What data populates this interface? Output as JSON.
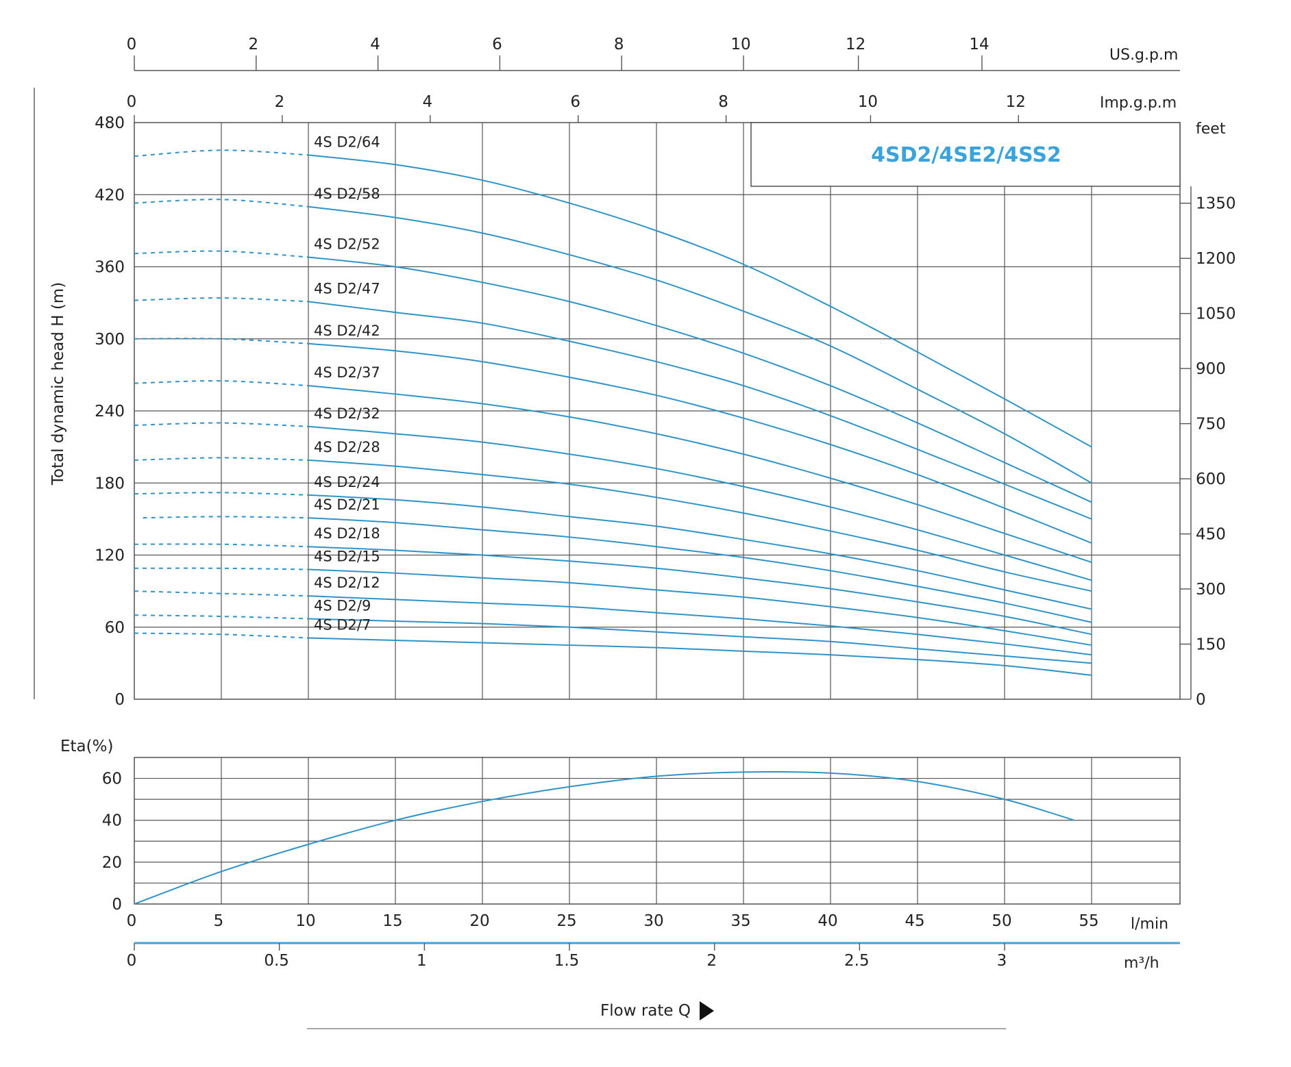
{
  "colors": {
    "curve": "#2e93c8",
    "grid": "#555555",
    "text": "#222222",
    "accent": "#3aa3dc"
  },
  "model_title": "4SD2/4SE2/4SS2",
  "chart_data": [
    {
      "type": "line",
      "panel": "head",
      "ylabel": "Total dynamic head H (m)",
      "xlabel": "Flow rate Q",
      "x_unit": "l/min",
      "xlim": [
        0,
        60
      ],
      "ylim": [
        0,
        480
      ],
      "x_ticks": [
        0,
        5,
        10,
        15,
        20,
        25,
        30,
        35,
        40,
        45,
        50,
        55
      ],
      "y_ticks": [
        0,
        60,
        120,
        180,
        240,
        300,
        360,
        420,
        480
      ],
      "grid": true,
      "dashed_segment_x": [
        0,
        10
      ],
      "series": [
        {
          "name": "4S D2/64",
          "x": [
            0,
            5,
            10,
            15,
            20,
            25,
            30,
            35,
            40,
            45,
            50,
            55
          ],
          "y": [
            452,
            457,
            453,
            445,
            432,
            413,
            390,
            362,
            327,
            289,
            250,
            210
          ]
        },
        {
          "name": "4S D2/58",
          "x": [
            0,
            5,
            10,
            15,
            20,
            25,
            30,
            35,
            40,
            45,
            50,
            55
          ],
          "y": [
            413,
            416,
            410,
            401,
            388,
            370,
            349,
            323,
            294,
            258,
            221,
            180
          ]
        },
        {
          "name": "4S D2/52",
          "x": [
            0,
            5,
            10,
            15,
            20,
            25,
            30,
            35,
            40,
            45,
            50,
            55
          ],
          "y": [
            371,
            373,
            368,
            360,
            347,
            331,
            311,
            288,
            261,
            230,
            197,
            164
          ]
        },
        {
          "name": "4S D2/47",
          "x": [
            0,
            5,
            10,
            15,
            20,
            25,
            30,
            35,
            40,
            45,
            50,
            55
          ],
          "y": [
            332,
            334,
            331,
            322,
            313,
            298,
            281,
            261,
            236,
            208,
            179,
            150
          ]
        },
        {
          "name": "4S D2/42",
          "x": [
            0,
            5,
            10,
            15,
            20,
            25,
            30,
            35,
            40,
            45,
            50,
            55
          ],
          "y": [
            300,
            300,
            296,
            290,
            281,
            268,
            253,
            234,
            212,
            187,
            159,
            130
          ]
        },
        {
          "name": "4S D2/37",
          "x": [
            0,
            5,
            10,
            15,
            20,
            25,
            30,
            35,
            40,
            45,
            50,
            55
          ],
          "y": [
            263,
            265,
            261,
            254,
            246,
            235,
            221,
            204,
            184,
            162,
            138,
            114
          ]
        },
        {
          "name": "4S D2/32",
          "x": [
            0,
            5,
            10,
            15,
            20,
            25,
            30,
            35,
            40,
            45,
            50,
            55
          ],
          "y": [
            228,
            230,
            227,
            221,
            214,
            204,
            192,
            177,
            160,
            141,
            120,
            99
          ]
        },
        {
          "name": "4S D2/28",
          "x": [
            0,
            5,
            10,
            15,
            20,
            25,
            30,
            35,
            40,
            45,
            50,
            55
          ],
          "y": [
            199,
            201,
            199,
            194,
            187,
            179,
            168,
            155,
            140,
            124,
            106,
            90
          ]
        },
        {
          "name": "4S D2/24",
          "x": [
            0,
            5,
            10,
            15,
            20,
            25,
            30,
            35,
            40,
            45,
            50,
            55
          ],
          "y": [
            171,
            172,
            170,
            166,
            160,
            152,
            144,
            133,
            121,
            107,
            91,
            75
          ]
        },
        {
          "name": "4S D2/21",
          "x": [
            0.5,
            5,
            10,
            15,
            20,
            25,
            30,
            35,
            40,
            45,
            50,
            55
          ],
          "y": [
            151,
            152,
            151,
            147,
            141,
            135,
            127,
            118,
            107,
            94,
            80,
            64
          ]
        },
        {
          "name": "4S D2/18",
          "x": [
            0,
            5,
            10,
            15,
            20,
            25,
            30,
            35,
            40,
            45,
            50,
            55
          ],
          "y": [
            129,
            129,
            127,
            124,
            120,
            115,
            109,
            101,
            92,
            81,
            69,
            54
          ]
        },
        {
          "name": "4S D2/15",
          "x": [
            0,
            5,
            10,
            15,
            20,
            25,
            30,
            35,
            40,
            45,
            50,
            55
          ],
          "y": [
            109,
            109,
            108,
            105,
            101,
            97,
            91,
            85,
            77,
            68,
            57,
            45
          ]
        },
        {
          "name": "4S D2/12",
          "x": [
            0,
            5,
            10,
            15,
            20,
            25,
            30,
            35,
            40,
            45,
            50,
            55
          ],
          "y": [
            90,
            88,
            86,
            83,
            80,
            77,
            72,
            67,
            61,
            54,
            46,
            37
          ]
        },
        {
          "name": "4S D2/9",
          "x": [
            0,
            5,
            10,
            15,
            20,
            25,
            30,
            35,
            40,
            45,
            50,
            55
          ],
          "y": [
            70,
            69,
            67,
            65,
            63,
            60,
            56,
            52,
            48,
            42,
            36,
            30
          ]
        },
        {
          "name": "4S D2/7",
          "x": [
            0,
            5,
            10,
            15,
            20,
            25,
            30,
            35,
            40,
            45,
            50,
            55
          ],
          "y": [
            55,
            54,
            51,
            49,
            47,
            45,
            43,
            40,
            37,
            33,
            28,
            20
          ]
        }
      ]
    },
    {
      "type": "line",
      "panel": "efficiency",
      "ylabel": "Eta(%)",
      "xlim": [
        0,
        60
      ],
      "ylim": [
        0,
        70
      ],
      "y_ticks": [
        0,
        20,
        40,
        60
      ],
      "grid": true,
      "series": [
        {
          "name": "",
          "x": [
            0,
            5,
            10,
            15,
            20,
            25,
            30,
            35,
            40,
            45,
            50,
            54
          ],
          "y": [
            0,
            15.5,
            28.5,
            40,
            49,
            56,
            61,
            63,
            62.5,
            58.5,
            50,
            40
          ]
        }
      ]
    }
  ],
  "axes": {
    "lpm": {
      "unit": "l/min",
      "ticks": [
        "0",
        "5",
        "10",
        "15",
        "20",
        "25",
        "30",
        "35",
        "40",
        "45",
        "50",
        "55"
      ]
    },
    "m3h": {
      "unit": "m³/h",
      "ticks": [
        {
          "label": "0",
          "lpm": 0
        },
        {
          "label": "0.5",
          "lpm": 8.333
        },
        {
          "label": "1",
          "lpm": 16.667
        },
        {
          "label": "1.5",
          "lpm": 25
        },
        {
          "label": "2",
          "lpm": 33.333
        },
        {
          "label": "2.5",
          "lpm": 41.667
        },
        {
          "label": "3",
          "lpm": 50
        }
      ]
    },
    "usgpm": {
      "unit": "US.g.p.m",
      "ticks": [
        {
          "label": "0",
          "lpm": 0
        },
        {
          "label": "2",
          "lpm": 7.0
        },
        {
          "label": "4",
          "lpm": 14.0
        },
        {
          "label": "6",
          "lpm": 21.0
        },
        {
          "label": "8",
          "lpm": 28.0
        },
        {
          "label": "10",
          "lpm": 35.0
        },
        {
          "label": "12",
          "lpm": 41.6
        },
        {
          "label": "14",
          "lpm": 48.7
        }
      ]
    },
    "impgpm": {
      "unit": "Imp.g.p.m",
      "ticks": [
        {
          "label": "0",
          "lpm": 0
        },
        {
          "label": "2",
          "lpm": 8.5
        },
        {
          "label": "4",
          "lpm": 17.0
        },
        {
          "label": "6",
          "lpm": 25.5
        },
        {
          "label": "8",
          "lpm": 34.0
        },
        {
          "label": "10",
          "lpm": 42.3
        },
        {
          "label": "12",
          "lpm": 50.8
        }
      ]
    },
    "feet": {
      "unit": "feet",
      "ticks": [
        {
          "label": "0",
          "m": 0
        },
        {
          "label": "150",
          "m": 45.9
        },
        {
          "label": "300",
          "m": 91.8
        },
        {
          "label": "450",
          "m": 137.6
        },
        {
          "label": "600",
          "m": 183.5
        },
        {
          "label": "750",
          "m": 229.4
        },
        {
          "label": "900",
          "m": 275.3
        },
        {
          "label": "1050",
          "m": 321.1
        },
        {
          "label": "1200",
          "m": 367
        },
        {
          "label": "1350",
          "m": 412.9
        }
      ]
    },
    "flow_title": "Flow rate Q"
  }
}
